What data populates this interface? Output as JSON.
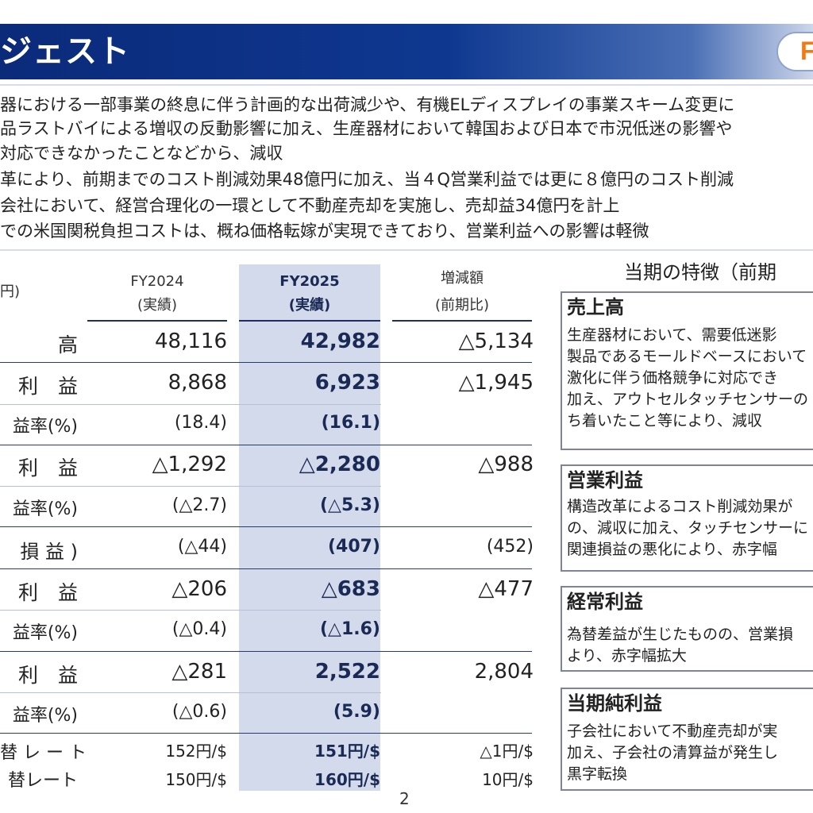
{
  "header": {
    "title": "ジェスト",
    "logo_letter": "F"
  },
  "bullets": [
    "器における一部事業の終息に伴う計画的な出荷減少や、有機ELディスプレイの事業スキーム変更に",
    "品ラストバイによる増収の反動影響に加え、生産器材において韓国および日本で市況低迷の影響や",
    "対応できなかったことなどから、減収",
    "革により、前期までのコスト削減効果48億円に加え、当４Q営業利益では更に８億円のコスト削減",
    "会社において、経営合理化の一環として不動産売却を実施し、売却益34億円を計上",
    "での米国関税負担コストは、概ね価格転嫁が実現できており、営業利益への影響は軽微"
  ],
  "table": {
    "unit_label": "円)",
    "columns": [
      {
        "line1": "FY2024",
        "line2": "(実績)"
      },
      {
        "line1": "FY2025",
        "line2": "(実績)"
      },
      {
        "line1": "増減額",
        "line2": "(前期比)"
      }
    ],
    "rows": [
      {
        "label": "高",
        "fy2024": "48,116",
        "fy2025": "42,982",
        "change": "△5,134"
      },
      {
        "label": "利　益",
        "fy2024": "8,868",
        "fy2025": "6,923",
        "change": "△1,945"
      },
      {
        "label": "益率(%)",
        "fy2024": "(18.4)",
        "fy2025": "(16.1)",
        "change": ""
      },
      {
        "label": "利　益",
        "fy2024": "△1,292",
        "fy2025": "△2,280",
        "change": "△988"
      },
      {
        "label": "益率(%)",
        "fy2024": "(△2.7)",
        "fy2025": "(△5.3)",
        "change": ""
      },
      {
        "label": "損 益 )",
        "fy2024": "(△44)",
        "fy2025": "(407)",
        "change": "(452)"
      },
      {
        "label": "利　益",
        "fy2024": "△206",
        "fy2025": "△683",
        "change": "△477"
      },
      {
        "label": "益率(%)",
        "fy2024": "(△0.4)",
        "fy2025": "(△1.6)",
        "change": ""
      },
      {
        "label": "利　益",
        "fy2024": "△281",
        "fy2025": "2,522",
        "change": "2,804"
      },
      {
        "label": "益率(%)",
        "fy2024": "(△0.6)",
        "fy2025": "(5.9)",
        "change": ""
      },
      {
        "label": "替 レ ー ト",
        "fy2024": "152円/$",
        "fy2025": "151円/$",
        "change": "△1円/$"
      },
      {
        "label": "替レート",
        "fy2024": "150円/$",
        "fy2025": "160円/$",
        "change": "10円/$"
      }
    ]
  },
  "side": {
    "title": "当期の特徴（前期",
    "boxes": [
      {
        "heading": "売上高",
        "lines": [
          "生産器材において、需要低迷影",
          "製品であるモールドベースにおいて",
          "激化に伴う価格競争に対応でき",
          "加え、アウトセルタッチセンサーの",
          "ち着いたこと等により、減収"
        ]
      },
      {
        "heading": "営業利益",
        "lines": [
          "構造改革によるコスト削減効果が",
          "の、減収に加え、タッチセンサーに",
          "関連損益の悪化により、赤字幅"
        ]
      },
      {
        "heading": "経常利益",
        "lines": [
          "為替差益が生じたものの、営業損",
          "より、赤字幅拡大"
        ]
      },
      {
        "heading": "当期純利益",
        "lines": [
          "子会社において不動産売却が実",
          "加え、子会社の清算益が発生し",
          "黒字転換"
        ]
      }
    ]
  },
  "page_number": "2"
}
